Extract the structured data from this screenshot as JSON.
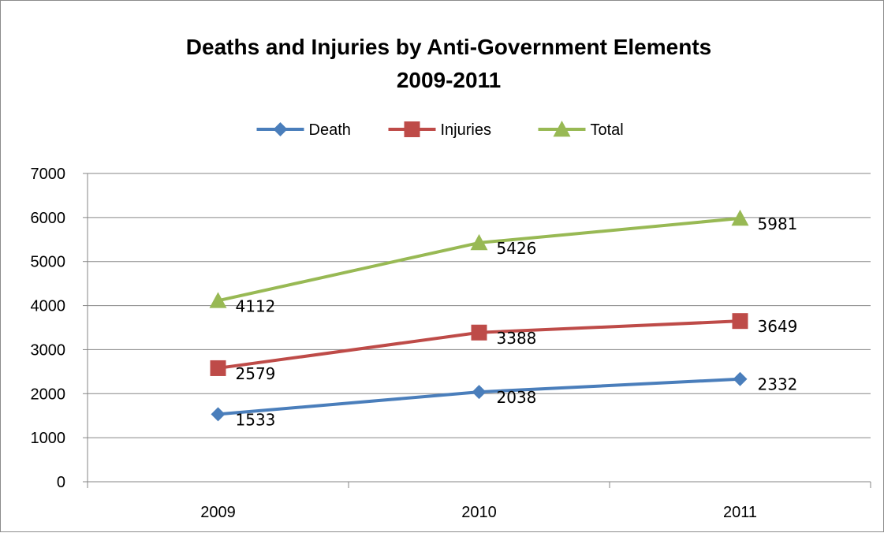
{
  "chart_data": {
    "type": "line",
    "title_lines": [
      "Deaths and Injuries by Anti-Government Elements",
      "2009-2011"
    ],
    "categories": [
      "2009",
      "2010",
      "2011"
    ],
    "ylim": [
      0,
      7000
    ],
    "yticks": [
      0,
      1000,
      2000,
      3000,
      4000,
      5000,
      6000,
      7000
    ],
    "grid": true,
    "legend_position": "top",
    "series": [
      {
        "name": "Death",
        "values": [
          1533,
          2038,
          2332
        ],
        "color": "#4a7ebb",
        "marker": "diamond"
      },
      {
        "name": "Injuries",
        "values": [
          2579,
          3388,
          3649
        ],
        "color": "#be4b48",
        "marker": "square"
      },
      {
        "name": "Total",
        "values": [
          4112,
          5426,
          5981
        ],
        "color": "#98b954",
        "marker": "triangle"
      }
    ],
    "data_labels": true
  }
}
